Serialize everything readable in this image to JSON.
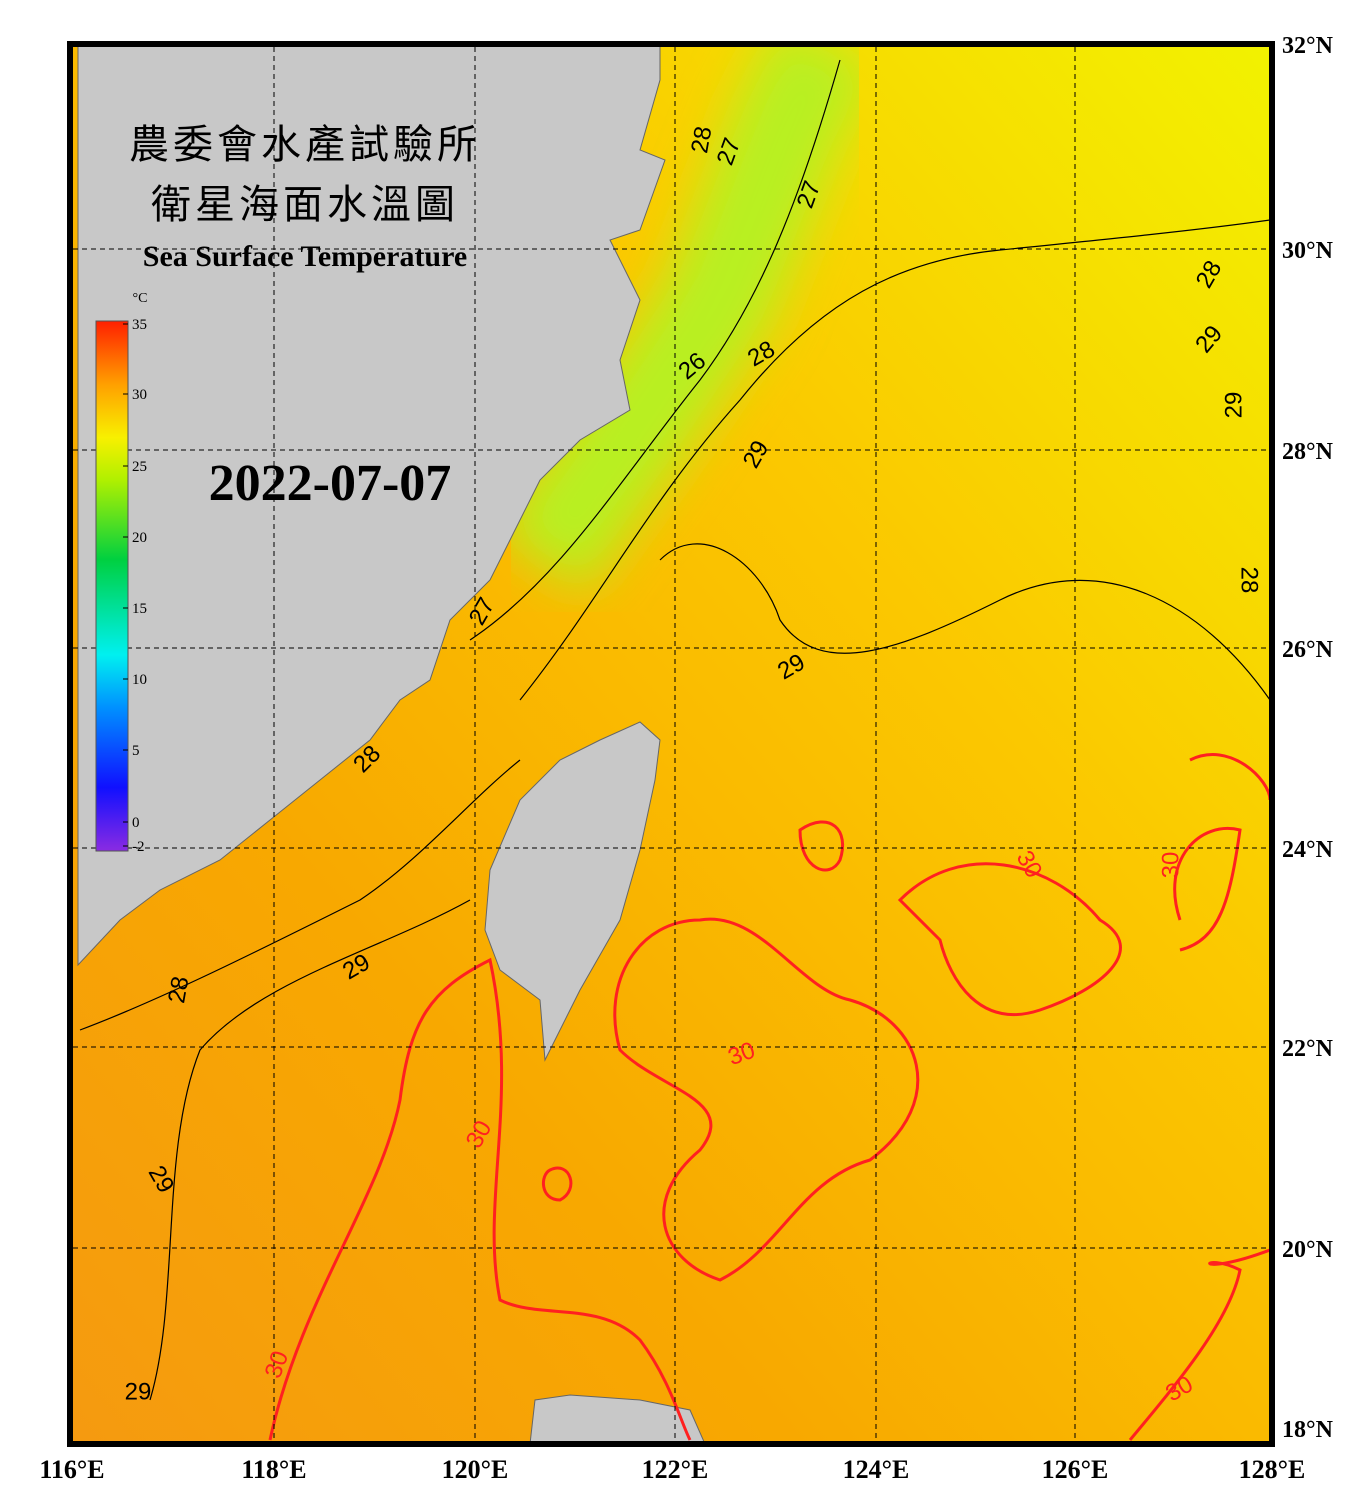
{
  "title_zh_1": "農委會水產試驗所",
  "title_zh_2": "衛星海面水溫圖",
  "title_en": "Sea Surface Temperature",
  "date": "2022-07-07",
  "colorbar": {
    "unit": "°C",
    "ticks": [
      "35",
      "30",
      "25",
      "20",
      "15",
      "10",
      "5",
      "0",
      "-2"
    ]
  },
  "longitude_labels": [
    "116°E",
    "118°E",
    "120°E",
    "122°E",
    "124°E",
    "126°E",
    "128°E"
  ],
  "latitude_labels": [
    "32°N",
    "30°N",
    "28°N",
    "26°N",
    "24°N",
    "22°N",
    "20°N",
    "18°N"
  ],
  "contour_labels": [
    "28",
    "27",
    "27",
    "28",
    "29",
    "29",
    "26",
    "28",
    "29",
    "28",
    "27",
    "29",
    "28",
    "30",
    "30",
    "29",
    "28",
    "30",
    "30",
    "29",
    "30",
    "29",
    "30"
  ]
}
